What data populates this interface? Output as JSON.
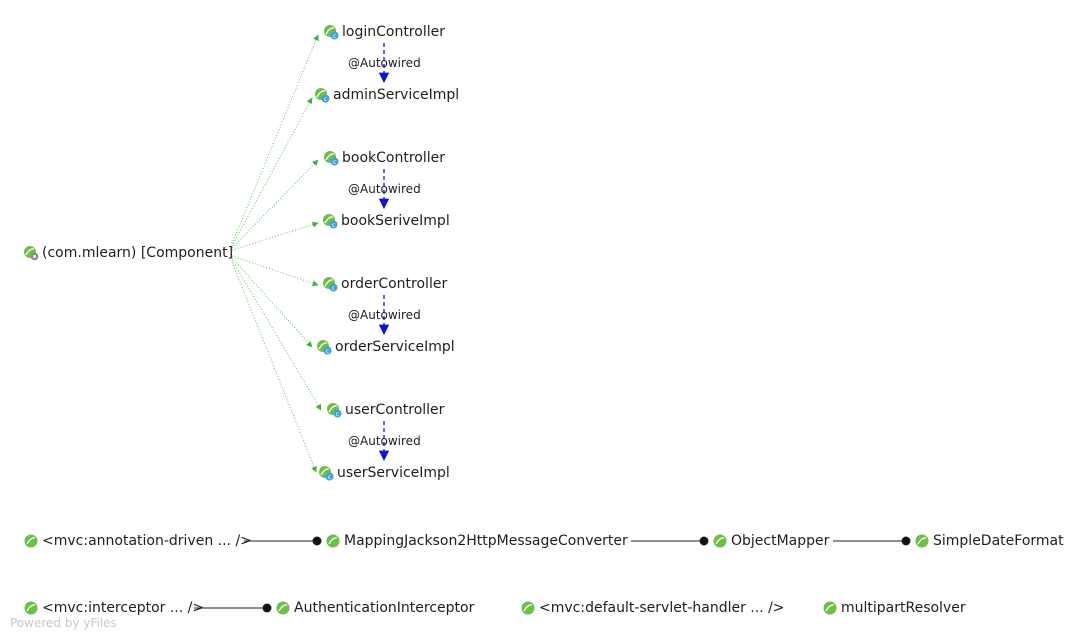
{
  "root": {
    "label": "(com.mlearn) [Component]",
    "icon": "spring-component-scan-icon"
  },
  "beans": {
    "login_controller": "loginController",
    "admin_service_impl": "adminServiceImpl",
    "book_controller": "bookController",
    "book_serive_impl": "bookSeriveImpl",
    "order_controller": "orderController",
    "order_service_impl": "orderServiceImpl",
    "user_controller": "userController",
    "user_service_impl": "userServiceImpl"
  },
  "edge_labels": {
    "autowired_1": "@Autowired",
    "autowired_2": "@Autowired",
    "autowired_3": "@Autowired",
    "autowired_4": "@Autowired"
  },
  "mvc": {
    "annotation_driven": "<mvc:annotation-driven ... />",
    "jackson_converter": "MappingJackson2HttpMessageConverter",
    "object_mapper": "ObjectMapper",
    "simple_date_format": "SimpleDateFormat",
    "interceptor": "<mvc:interceptor ... />",
    "authentication_interceptor": "AuthenticationInterceptor",
    "default_servlet_handler": "<mvc:default-servlet-handler ... />",
    "multipart_resolver": "multipartResolver"
  },
  "watermark": "Powered by yFiles",
  "colors": {
    "bean_green": "#6fbd4a",
    "class_badge": "#3fa3d8",
    "dependency_edge": "#5cc35c",
    "autowired_edge": "#1010e0",
    "property_edge": "#222222"
  }
}
